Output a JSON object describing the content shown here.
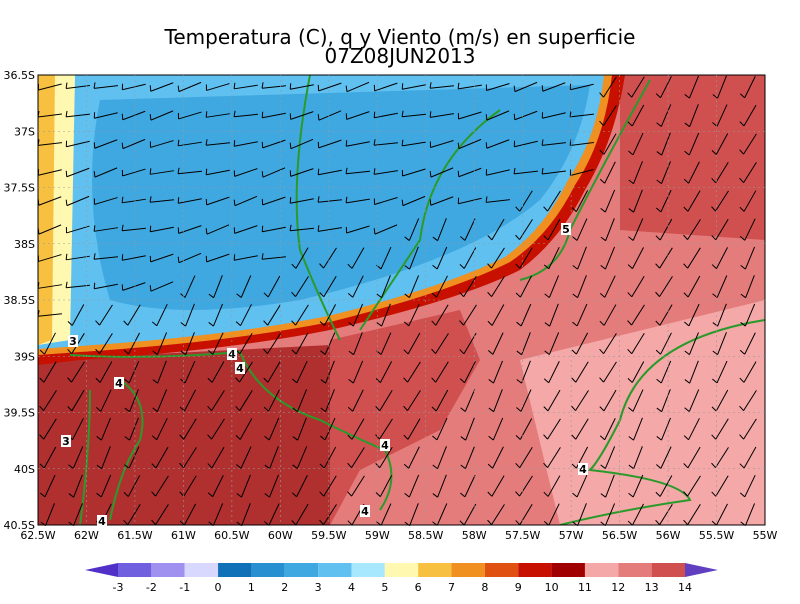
{
  "header": {
    "title": "Temperatura (C), q y Viento (m/s) en superficie",
    "subtitle": "07Z08JUN2013"
  },
  "map": {
    "x_labels": [
      "62.5W",
      "62W",
      "61.5W",
      "61W",
      "60.5W",
      "60W",
      "59.5W",
      "59W",
      "58.5W",
      "58W",
      "57.5W",
      "57W",
      "56.5W",
      "56W",
      "55.5W",
      "55W"
    ],
    "y_labels": [
      "36.5S",
      "37S",
      "37.5S",
      "38S",
      "38.5S",
      "39S",
      "39.5S",
      "40S",
      "40.5S"
    ],
    "contour_labels": [
      3,
      3,
      4,
      4,
      4,
      4,
      4,
      4,
      4,
      5
    ]
  },
  "colorbar": {
    "labels": [
      -3,
      -2,
      -1,
      0,
      1,
      2,
      3,
      4,
      5,
      6,
      7,
      8,
      9,
      10,
      11,
      12,
      13,
      14
    ],
    "colors": [
      "#5030c8",
      "#7060e0",
      "#a090f0",
      "#d8d8ff",
      "#1070b8",
      "#2890d0",
      "#40a8e0",
      "#60c0f0",
      "#a8e8ff",
      "#fff8b0",
      "#f8c040",
      "#f09020",
      "#e05010",
      "#c81000",
      "#a00000",
      "#f4a8a8",
      "#e47c7c",
      "#d05050",
      "#b03030",
      "#6040c0"
    ]
  }
}
